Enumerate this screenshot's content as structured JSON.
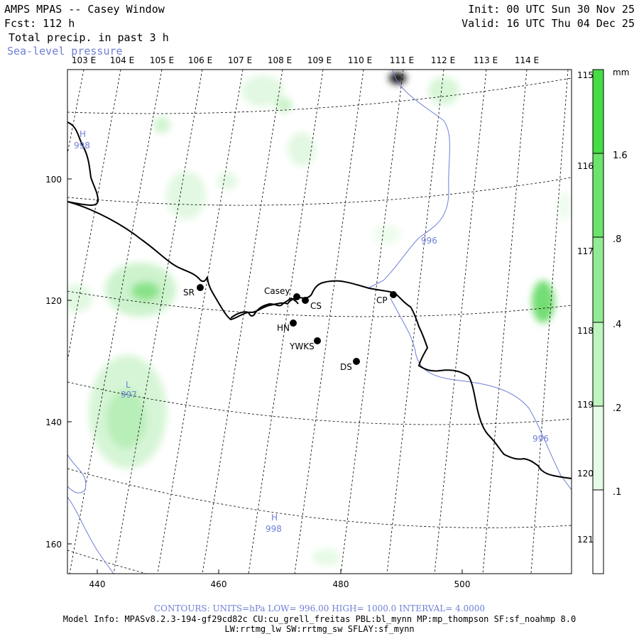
{
  "header": {
    "title": "AMPS MPAS -- Casey Window",
    "forecast": "Fcst: 112 h",
    "field1": "Total precip. in past 3 h",
    "field2": "Sea-level pressure",
    "init": "Init: 00 UTC Sun 30 Nov 25",
    "valid": "Valid: 16 UTC Thu 04 Dec 25"
  },
  "map": {
    "top_lon_labels": [
      "103 E",
      "104 E",
      "105 E",
      "106 E",
      "107 E",
      "108 E",
      "109 E",
      "110 E",
      "111 E",
      "112 E",
      "113 E",
      "114 E"
    ],
    "right_lon_labels": [
      "115 E",
      "116 E",
      "117 E",
      "118 E",
      "119 E",
      "120 E",
      "121 E"
    ],
    "x_ticks": [
      "440",
      "460",
      "480",
      "500"
    ],
    "y_ticks": [
      "100",
      "120",
      "140",
      "160"
    ],
    "stations": [
      {
        "name": "SR"
      },
      {
        "name": "Casey"
      },
      {
        "name": "CS"
      },
      {
        "name": "CP"
      },
      {
        "name": "HN"
      },
      {
        "name": "YWKS"
      },
      {
        "name": "DS"
      }
    ],
    "pressure_labels": [
      {
        "type": "H",
        "value": "998"
      },
      {
        "type": "",
        "value": "996"
      },
      {
        "type": "L",
        "value": "997"
      },
      {
        "type": "",
        "value": "996"
      },
      {
        "type": "H",
        "value": "998"
      }
    ]
  },
  "colorbar": {
    "unit": "mm",
    "labels": [
      "1.6",
      ".8",
      ".4",
      ".2",
      ".1"
    ],
    "colors": [
      "#44dd44",
      "#6ce46c",
      "#93ec93",
      "#bef5be",
      "#e6fbe6",
      "#ffffff"
    ]
  },
  "footer": {
    "contours": "CONTOURS: UNITS=hPa LOW= 996.00 HIGH= 1000.0 INTERVAL= 4.0000",
    "model_info": "Model Info: MPASv8.2.3-194-gf29cd82c CU:cu_grell_freitas PBL:bl_mynn MP:mp_thompson SF:sf_noahmp 8.0",
    "physics": "LW:rrtmg_lw SW:rrtmg_sw SFLAY:sf_mynn"
  },
  "colors": {
    "contour": "#6f7fd6",
    "precip_light": "#e2f8e2",
    "precip_mid": "#b9efb9",
    "precip_strong": "#7fe07f"
  }
}
